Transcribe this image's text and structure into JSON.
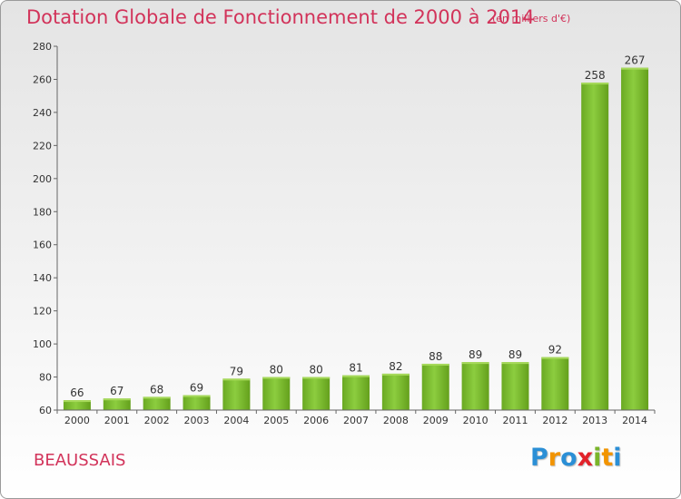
{
  "header": {
    "title": "Dotation Globale de Fonctionnement de 2000 à 2014",
    "unit": "(en milliers d'€)"
  },
  "footer": {
    "commune": "BEAUSSAIS",
    "logo_letters": [
      "P",
      "r",
      "o",
      "x",
      "i",
      "t",
      "i"
    ]
  },
  "chart_data": {
    "type": "bar",
    "title": "Dotation Globale de Fonctionnement de 2000 à 2014",
    "subtitle": "(en milliers d'€)",
    "categories": [
      "2000",
      "2001",
      "2002",
      "2003",
      "2004",
      "2005",
      "2006",
      "2007",
      "2008",
      "2009",
      "2010",
      "2011",
      "2012",
      "2013",
      "2014"
    ],
    "values": [
      66,
      67,
      68,
      69,
      79,
      80,
      80,
      81,
      82,
      88,
      89,
      89,
      92,
      258,
      267
    ],
    "ylim": [
      60,
      280
    ],
    "yticks": [
      60,
      80,
      100,
      120,
      140,
      160,
      180,
      200,
      220,
      240,
      260,
      280
    ],
    "grid": false,
    "bar_color": "#7cbf2e",
    "bar_highlight": "#a6d95a",
    "bar_shadow": "#5e9a1a"
  }
}
